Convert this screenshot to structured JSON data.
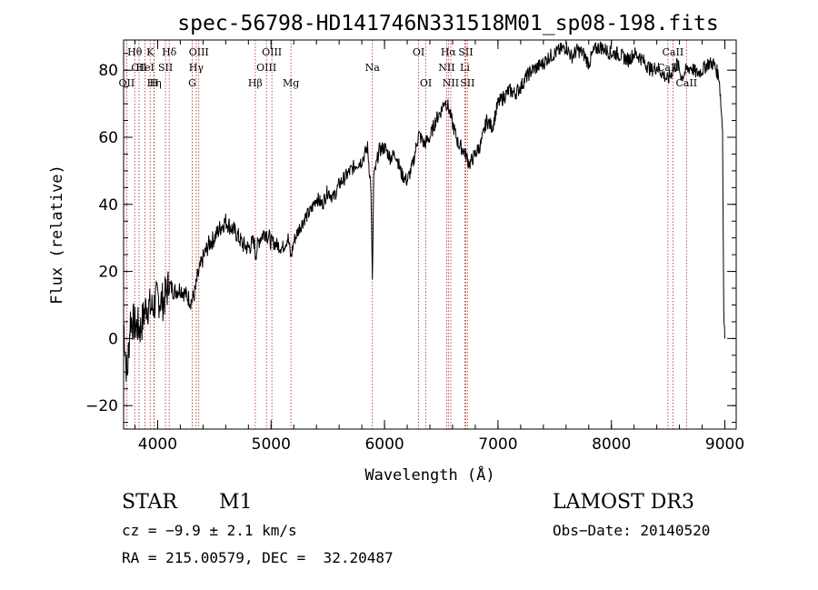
{
  "chart_data": {
    "type": "line",
    "title": "spec-56798-HD141746N331518M01_sp08-198.fits",
    "xlabel": "Wavelength (Å)",
    "ylabel": "Flux (relative)",
    "xlim": [
      3700,
      9100
    ],
    "ylim": [
      -27,
      89
    ],
    "xticks": [
      4000,
      5000,
      6000,
      7000,
      8000,
      9000
    ],
    "yticks": [
      -20,
      0,
      20,
      40,
      60,
      80
    ],
    "series": [
      {
        "name": "flux",
        "x": [
          3700,
          3730,
          3760,
          3800,
          3850,
          3900,
          3950,
          4000,
          4050,
          4100,
          4150,
          4200,
          4250,
          4300,
          4330,
          4350,
          4400,
          4450,
          4500,
          4550,
          4600,
          4650,
          4700,
          4750,
          4800,
          4850,
          4861,
          4900,
          4950,
          5000,
          5050,
          5100,
          5150,
          5175,
          5200,
          5250,
          5300,
          5350,
          5400,
          5450,
          5500,
          5550,
          5600,
          5650,
          5700,
          5750,
          5800,
          5850,
          5880,
          5893,
          5905,
          5930,
          5950,
          6000,
          6050,
          6100,
          6150,
          6200,
          6250,
          6300,
          6350,
          6400,
          6450,
          6500,
          6530,
          6563,
          6600,
          6650,
          6700,
          6750,
          6800,
          6850,
          6900,
          6950,
          7000,
          7050,
          7100,
          7150,
          7200,
          7250,
          7300,
          7350,
          7400,
          7450,
          7500,
          7550,
          7600,
          7650,
          7700,
          7750,
          7800,
          7850,
          7900,
          7950,
          8000,
          8050,
          8100,
          8150,
          8200,
          8250,
          8300,
          8350,
          8400,
          8450,
          8498,
          8542,
          8580,
          8620,
          8662,
          8700,
          8750,
          8800,
          8850,
          8900,
          8950,
          8980,
          8990,
          9000
        ],
        "y": [
          5,
          -12,
          6,
          4,
          3,
          10,
          9,
          12,
          11,
          16,
          14,
          15,
          13,
          11,
          14,
          18,
          24,
          28,
          30,
          33,
          35,
          33,
          31,
          28,
          27,
          29,
          25,
          30,
          32,
          29,
          28,
          27,
          30,
          24,
          29,
          33,
          36,
          38,
          42,
          40,
          44,
          42,
          46,
          48,
          50,
          52,
          53,
          57,
          45,
          16,
          48,
          52,
          56,
          57,
          54,
          55,
          49,
          47,
          52,
          61,
          58,
          60,
          65,
          68,
          71,
          69,
          64,
          58,
          56,
          52,
          55,
          58,
          65,
          63,
          70,
          72,
          74,
          73,
          75,
          78,
          80,
          81,
          82,
          84,
          85,
          86,
          87,
          84,
          86,
          85,
          82,
          86,
          87,
          86,
          85,
          85,
          84,
          83,
          85,
          84,
          82,
          80,
          81,
          79,
          77,
          80,
          82,
          78,
          80,
          81,
          79,
          80,
          82,
          82,
          78,
          62,
          8,
          0
        ]
      }
    ],
    "annotations": [
      {
        "label": "Hθ",
        "x": 3798,
        "row": 1
      },
      {
        "label": "CII",
        "x": 3836,
        "row": 2
      },
      {
        "label": "OII",
        "x": 3727,
        "row": 3
      },
      {
        "label": "HeI",
        "x": 3889,
        "row": 2
      },
      {
        "label": "Hη",
        "x": 3970,
        "row": 3
      },
      {
        "label": "K",
        "x": 3934,
        "row": 1
      },
      {
        "label": "SII",
        "x": 4069,
        "row": 2
      },
      {
        "label": "H",
        "x": 3968,
        "row": 3
      },
      {
        "label": "Hδ",
        "x": 4102,
        "row": 1
      },
      {
        "label": "OIII",
        "x": 4363,
        "row": 1
      },
      {
        "label": "Hγ",
        "x": 4340,
        "row": 2
      },
      {
        "label": "G",
        "x": 4305,
        "row": 3
      },
      {
        "label": "Hβ",
        "x": 4861,
        "row": 3
      },
      {
        "label": "OIII",
        "x": 5007,
        "row": 1
      },
      {
        "label": "OIII",
        "x": 4959,
        "row": 2
      },
      {
        "label": "Mg",
        "x": 5175,
        "row": 3
      },
      {
        "label": "Na",
        "x": 5893,
        "row": 2
      },
      {
        "label": "OI",
        "x": 6300,
        "row": 1
      },
      {
        "label": "OI",
        "x": 6364,
        "row": 3
      },
      {
        "label": "Hα",
        "x": 6563,
        "row": 1
      },
      {
        "label": "SII",
        "x": 6716,
        "row": 1
      },
      {
        "label": "NII",
        "x": 6548,
        "row": 2
      },
      {
        "label": "Li",
        "x": 6708,
        "row": 2
      },
      {
        "label": "NII",
        "x": 6584,
        "row": 3
      },
      {
        "label": "SII",
        "x": 6731,
        "row": 3
      },
      {
        "label": "CaII",
        "x": 8542,
        "row": 1
      },
      {
        "label": "CaII",
        "x": 8498,
        "row": 2
      },
      {
        "label": "CaII",
        "x": 8662,
        "row": 3
      }
    ],
    "grid": false
  },
  "info": {
    "object_class": "STAR",
    "subclass": "M1",
    "survey": "LAMOST DR3",
    "cz": "cz = −9.9 ± 2.1 km/s",
    "obs_date": "Obs−Date: 20140520",
    "coords": "RA = 215.00579, DEC =  32.20487"
  }
}
